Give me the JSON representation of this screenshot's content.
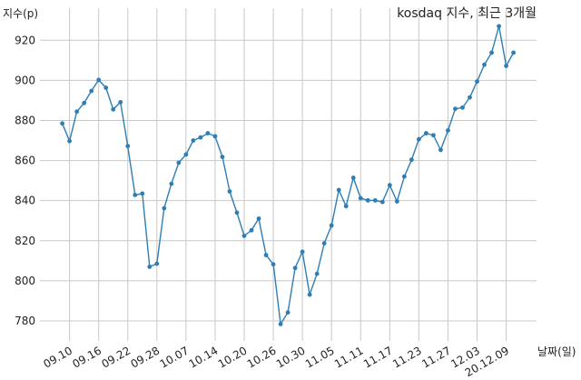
{
  "chart_data": {
    "type": "line",
    "title": "kosdaq 지수, 최근 3개월",
    "ylabel": "지수(p)",
    "xlabel": "날짜(일)",
    "ylim": [
      770,
      936
    ],
    "yticks": [
      780,
      800,
      820,
      840,
      860,
      880,
      900,
      920
    ],
    "x_tick_labels": [
      "09.10",
      "09.16",
      "09.22",
      "09.28",
      "10.07",
      "10.14",
      "10.20",
      "10.26",
      "10.30",
      "11.05",
      "11.11",
      "11.17",
      "11.23",
      "11.27",
      "12.03",
      "20.12.09"
    ],
    "grid": true,
    "color": "#2e7eb5",
    "series": [
      {
        "values": [
          878.5,
          869.7,
          884.4,
          888.7,
          894.7,
          900.2,
          896.3,
          885.5,
          889.1,
          867.2,
          842.8,
          843.5,
          807.0,
          808.5,
          836.2,
          848.4,
          858.9,
          863.0,
          870.0,
          871.5,
          873.6,
          872.1,
          861.8,
          844.6,
          834.0,
          822.4,
          825.2,
          831.0,
          812.8,
          808.2,
          778.4,
          784.2,
          806.4,
          814.5,
          793.1,
          803.5,
          818.7,
          827.6,
          845.3,
          837.2,
          851.4,
          841.2,
          840.1,
          840.1,
          839.3,
          847.7,
          839.6,
          852.0,
          860.4,
          870.6,
          873.6,
          872.6,
          865.3,
          875.0,
          885.8,
          886.4,
          891.5,
          899.4,
          907.8,
          913.8,
          927.0,
          907.2,
          913.8
        ]
      }
    ]
  }
}
